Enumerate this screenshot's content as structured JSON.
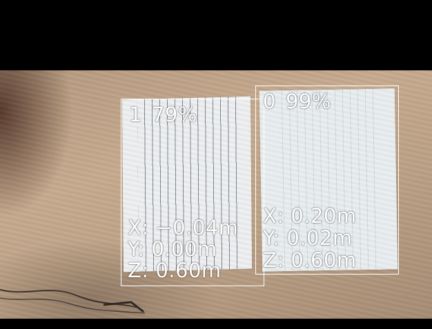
{
  "detections": [
    {
      "id": "1",
      "confidence": "79%",
      "x_label": "X: −0.04m",
      "y_label": "Y: 0.00m",
      "z_label": "Z: 0.60m"
    },
    {
      "id": "0",
      "confidence": "99%",
      "x_label": "X: 0.20m",
      "y_label": "Y: 0.02m",
      "z_label": "Z: 0.60m"
    }
  ],
  "colors": {
    "bbox": "#ffffff",
    "label_text": "#ffffff",
    "letterbox": "#000000"
  }
}
